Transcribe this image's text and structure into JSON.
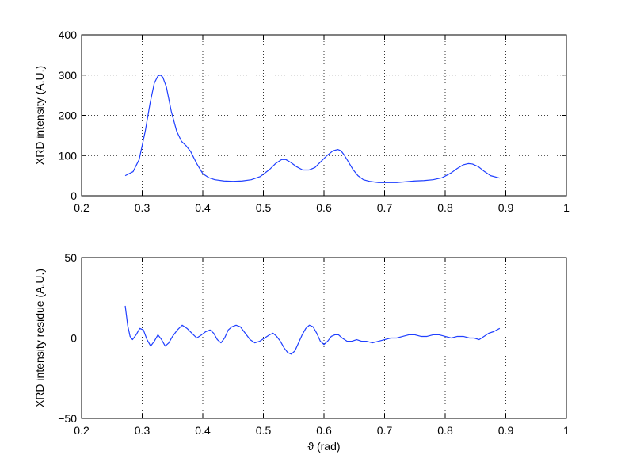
{
  "chart_data": [
    {
      "type": "line",
      "title": "",
      "xlabel": "",
      "ylabel": "XRD intensity (A.U.)",
      "xlim": [
        0.2,
        1
      ],
      "ylim": [
        0,
        400
      ],
      "xticks": [
        "0.2",
        "0.3",
        "0.4",
        "0.5",
        "0.6",
        "0.7",
        "0.8",
        "0.9",
        "1"
      ],
      "yticks": [
        "0",
        "100",
        "200",
        "300",
        "400"
      ],
      "xtick_values": [
        0.2,
        0.3,
        0.4,
        0.5,
        0.6,
        0.7,
        0.8,
        0.9,
        1.0
      ],
      "ytick_values": [
        0,
        100,
        200,
        300,
        400
      ],
      "grid": true,
      "grid_style": "dotted",
      "color": "#1f3fff",
      "series": [
        {
          "x": [
            0.272,
            0.285,
            0.295,
            0.305,
            0.313,
            0.32,
            0.326,
            0.33,
            0.334,
            0.34,
            0.348,
            0.357,
            0.365,
            0.372,
            0.38,
            0.39,
            0.4,
            0.41,
            0.42,
            0.435,
            0.45,
            0.465,
            0.48,
            0.495,
            0.51,
            0.52,
            0.53,
            0.537,
            0.545,
            0.555,
            0.565,
            0.575,
            0.585,
            0.595,
            0.605,
            0.615,
            0.623,
            0.628,
            0.633,
            0.64,
            0.648,
            0.656,
            0.665,
            0.675,
            0.69,
            0.705,
            0.72,
            0.735,
            0.75,
            0.765,
            0.78,
            0.795,
            0.81,
            0.82,
            0.83,
            0.838,
            0.845,
            0.855,
            0.865,
            0.875,
            0.89
          ],
          "y": [
            50,
            60,
            90,
            160,
            230,
            280,
            298,
            300,
            295,
            270,
            210,
            160,
            135,
            125,
            110,
            80,
            55,
            45,
            40,
            37,
            36,
            37,
            40,
            48,
            65,
            80,
            90,
            90,
            83,
            72,
            64,
            64,
            70,
            85,
            100,
            112,
            115,
            112,
            102,
            85,
            65,
            50,
            40,
            36,
            33,
            33,
            33,
            35,
            37,
            38,
            40,
            45,
            57,
            68,
            77,
            80,
            79,
            72,
            60,
            50,
            44
          ]
        }
      ]
    },
    {
      "type": "line",
      "title": "",
      "xlabel": "ϑ (rad)",
      "ylabel": "XRD intensity residue (A.U.)",
      "xlim": [
        0.2,
        1
      ],
      "ylim": [
        -50,
        50
      ],
      "xticks": [
        "0.2",
        "0.3",
        "0.4",
        "0.5",
        "0.6",
        "0.7",
        "0.8",
        "0.9",
        "1"
      ],
      "yticks": [
        "−50",
        "0",
        "50"
      ],
      "xtick_values": [
        0.2,
        0.3,
        0.4,
        0.5,
        0.6,
        0.7,
        0.8,
        0.9,
        1.0
      ],
      "ytick_values": [
        -50,
        0,
        50
      ],
      "grid": true,
      "grid_style": "dotted",
      "color": "#1f3fff",
      "series": [
        {
          "x": [
            0.272,
            0.276,
            0.28,
            0.284,
            0.29,
            0.296,
            0.302,
            0.308,
            0.314,
            0.32,
            0.326,
            0.332,
            0.338,
            0.344,
            0.35,
            0.358,
            0.366,
            0.374,
            0.382,
            0.39,
            0.398,
            0.405,
            0.412,
            0.418,
            0.424,
            0.43,
            0.436,
            0.442,
            0.448,
            0.455,
            0.462,
            0.47,
            0.478,
            0.486,
            0.494,
            0.502,
            0.51,
            0.516,
            0.522,
            0.528,
            0.534,
            0.54,
            0.546,
            0.552,
            0.558,
            0.564,
            0.57,
            0.576,
            0.582,
            0.588,
            0.594,
            0.6,
            0.606,
            0.612,
            0.618,
            0.624,
            0.63,
            0.638,
            0.646,
            0.654,
            0.662,
            0.67,
            0.68,
            0.69,
            0.7,
            0.71,
            0.72,
            0.73,
            0.74,
            0.75,
            0.76,
            0.77,
            0.78,
            0.79,
            0.8,
            0.81,
            0.82,
            0.83,
            0.84,
            0.848,
            0.856,
            0.864,
            0.872,
            0.88,
            0.89
          ],
          "y": [
            20,
            8,
            1,
            -1,
            2,
            6,
            5,
            -1,
            -5,
            -2,
            2,
            -1,
            -5,
            -3,
            1,
            5,
            8,
            6,
            3,
            0,
            2,
            4,
            5,
            3,
            -1,
            -3,
            0,
            5,
            7,
            8,
            7,
            3,
            -1,
            -3,
            -2,
            0,
            2,
            3,
            1,
            -2,
            -6,
            -9,
            -10,
            -8,
            -3,
            2,
            6,
            8,
            7,
            3,
            -2,
            -4,
            -2,
            1,
            2,
            2,
            0,
            -2,
            -2,
            -1,
            -2,
            -2,
            -3,
            -2,
            -1,
            0,
            0,
            1,
            2,
            2,
            1,
            1,
            2,
            2,
            1,
            0,
            1,
            1,
            0,
            0,
            -1,
            1,
            3,
            4,
            6
          ]
        }
      ]
    }
  ]
}
